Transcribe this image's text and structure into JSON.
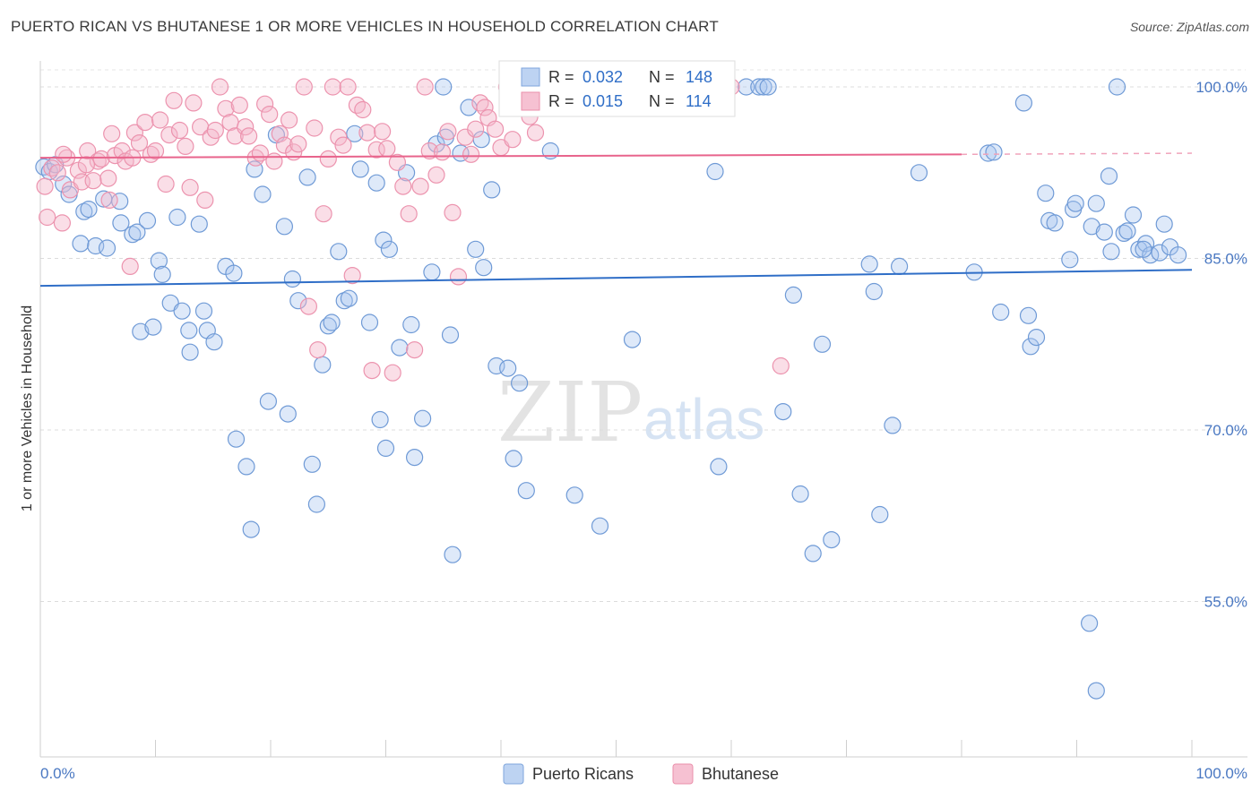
{
  "header": {
    "title": "PUERTO RICAN VS BHUTANESE 1 OR MORE VEHICLES IN HOUSEHOLD CORRELATION CHART",
    "source": "Source: ZipAtlas.com"
  },
  "watermark": {
    "zip": "ZIP",
    "atlas": "atlas"
  },
  "legend": {
    "r_label": "R =",
    "n_label": "N =",
    "rows": [
      {
        "name": "Puerto Ricans",
        "r": "0.032",
        "n": "148"
      },
      {
        "name": "Bhutanese",
        "r": "0.015",
        "n": "114"
      }
    ]
  },
  "chart_data": {
    "type": "scatter",
    "title": "PUERTO RICAN VS BHUTANESE 1 OR MORE VEHICLES IN HOUSEHOLD CORRELATION CHART",
    "xlabel": "",
    "ylabel": "1 or more Vehicles in Household",
    "xlim": [
      0,
      100
    ],
    "ylim": [
      40,
      101.5
    ],
    "x_tick_labels": [
      "0.0%",
      "100.0%"
    ],
    "y_ticks": [
      {
        "value": 100,
        "label": "100.0%"
      },
      {
        "value": 85,
        "label": "85.0%"
      },
      {
        "value": 70,
        "label": "70.0%"
      },
      {
        "value": 55,
        "label": "55.0%"
      }
    ],
    "grid": true,
    "colors": {
      "puerto_ricans": "#a7c4ee",
      "puerto_ricans_line": "#2f6ec7",
      "bhutanese": "#f4b6ca",
      "bhutanese_line": "#e8648c",
      "tick": "#4a78c2"
    },
    "series": [
      {
        "name": "Puerto Ricans",
        "r": 0.032,
        "n": 148,
        "trend": {
          "x": [
            0,
            100
          ],
          "y": [
            82.6,
            84.0
          ]
        },
        "points": [
          [
            0.3,
            93.0
          ],
          [
            0.8,
            92.6
          ],
          [
            1.3,
            93.2
          ],
          [
            2.0,
            91.5
          ],
          [
            2.5,
            90.6
          ],
          [
            3.5,
            86.3
          ],
          [
            3.8,
            89.1
          ],
          [
            4.2,
            89.3
          ],
          [
            4.8,
            86.1
          ],
          [
            5.8,
            85.9
          ],
          [
            5.5,
            90.2
          ],
          [
            6.9,
            90.0
          ],
          [
            7.0,
            88.1
          ],
          [
            8.0,
            87.1
          ],
          [
            8.4,
            87.3
          ],
          [
            9.3,
            88.3
          ],
          [
            8.7,
            78.6
          ],
          [
            9.8,
            79.0
          ],
          [
            10.3,
            84.8
          ],
          [
            10.6,
            83.6
          ],
          [
            11.3,
            81.1
          ],
          [
            11.9,
            88.6
          ],
          [
            12.3,
            80.4
          ],
          [
            12.9,
            78.7
          ],
          [
            13.0,
            76.8
          ],
          [
            13.8,
            88.0
          ],
          [
            14.2,
            80.4
          ],
          [
            14.5,
            78.7
          ],
          [
            15.1,
            77.7
          ],
          [
            16.1,
            84.3
          ],
          [
            16.8,
            83.7
          ],
          [
            17.0,
            69.2
          ],
          [
            17.9,
            66.8
          ],
          [
            18.3,
            61.3
          ],
          [
            18.6,
            92.8
          ],
          [
            19.3,
            90.6
          ],
          [
            19.8,
            72.5
          ],
          [
            20.5,
            95.8
          ],
          [
            21.2,
            87.8
          ],
          [
            21.5,
            71.4
          ],
          [
            21.9,
            83.2
          ],
          [
            22.4,
            81.3
          ],
          [
            23.2,
            92.1
          ],
          [
            23.6,
            67.0
          ],
          [
            24.0,
            63.5
          ],
          [
            24.5,
            75.7
          ],
          [
            25.0,
            79.1
          ],
          [
            25.3,
            79.4
          ],
          [
            25.9,
            85.6
          ],
          [
            26.4,
            81.3
          ],
          [
            26.8,
            81.5
          ],
          [
            27.3,
            95.9
          ],
          [
            27.8,
            92.8
          ],
          [
            28.6,
            79.4
          ],
          [
            29.2,
            91.6
          ],
          [
            29.5,
            70.9
          ],
          [
            29.8,
            86.6
          ],
          [
            30.0,
            68.4
          ],
          [
            30.3,
            85.8
          ],
          [
            31.2,
            77.2
          ],
          [
            31.8,
            92.5
          ],
          [
            32.2,
            79.2
          ],
          [
            32.5,
            67.6
          ],
          [
            33.2,
            71.0
          ],
          [
            34.0,
            83.8
          ],
          [
            34.4,
            95.0
          ],
          [
            35.0,
            100.0
          ],
          [
            35.2,
            95.6
          ],
          [
            35.6,
            78.3
          ],
          [
            35.8,
            59.1
          ],
          [
            36.5,
            94.2
          ],
          [
            37.2,
            98.2
          ],
          [
            37.8,
            85.8
          ],
          [
            38.3,
            95.4
          ],
          [
            38.5,
            84.2
          ],
          [
            39.2,
            91.0
          ],
          [
            39.6,
            75.6
          ],
          [
            40.6,
            75.4
          ],
          [
            41.1,
            67.5
          ],
          [
            41.6,
            74.1
          ],
          [
            42.2,
            64.7
          ],
          [
            44.3,
            94.4
          ],
          [
            46.4,
            64.3
          ],
          [
            48.6,
            61.6
          ],
          [
            49.5,
            100.0
          ],
          [
            51.4,
            77.9
          ],
          [
            58.6,
            92.6
          ],
          [
            58.9,
            66.8
          ],
          [
            61.3,
            100.0
          ],
          [
            62.4,
            100.0
          ],
          [
            62.8,
            100.0
          ],
          [
            63.2,
            100.0
          ],
          [
            64.5,
            71.6
          ],
          [
            65.4,
            81.8
          ],
          [
            66.0,
            64.4
          ],
          [
            67.1,
            59.2
          ],
          [
            67.9,
            77.5
          ],
          [
            68.7,
            60.4
          ],
          [
            72.0,
            84.5
          ],
          [
            72.4,
            82.1
          ],
          [
            72.9,
            62.6
          ],
          [
            74.0,
            70.4
          ],
          [
            74.6,
            84.3
          ],
          [
            76.3,
            92.5
          ],
          [
            81.1,
            83.8
          ],
          [
            82.3,
            94.2
          ],
          [
            82.8,
            94.3
          ],
          [
            83.4,
            80.3
          ],
          [
            85.4,
            98.6
          ],
          [
            85.8,
            80.0
          ],
          [
            86.0,
            77.3
          ],
          [
            86.5,
            78.1
          ],
          [
            87.3,
            90.7
          ],
          [
            87.6,
            88.3
          ],
          [
            88.1,
            88.1
          ],
          [
            89.4,
            84.9
          ],
          [
            89.7,
            89.3
          ],
          [
            89.9,
            89.8
          ],
          [
            91.3,
            87.8
          ],
          [
            91.7,
            89.8
          ],
          [
            92.4,
            87.3
          ],
          [
            92.8,
            92.2
          ],
          [
            93.0,
            85.6
          ],
          [
            94.1,
            87.2
          ],
          [
            94.4,
            87.4
          ],
          [
            94.9,
            88.8
          ],
          [
            95.4,
            85.8
          ],
          [
            96.0,
            86.3
          ],
          [
            96.4,
            85.3
          ],
          [
            97.2,
            85.5
          ],
          [
            97.6,
            88.0
          ],
          [
            98.1,
            86.0
          ],
          [
            98.8,
            85.3
          ],
          [
            91.1,
            53.1
          ],
          [
            91.7,
            47.2
          ],
          [
            93.5,
            100.0
          ],
          [
            95.8,
            85.8
          ]
        ]
      },
      {
        "name": "Bhutanese",
        "r": 0.015,
        "n": 114,
        "trend": {
          "x": [
            0,
            80
          ],
          "y": [
            93.8,
            94.1
          ]
        },
        "trend_dashed": {
          "x": [
            80,
            100
          ],
          "y": [
            94.1,
            94.2
          ]
        },
        "points": [
          [
            0.4,
            91.3
          ],
          [
            0.6,
            88.6
          ],
          [
            1.0,
            92.9
          ],
          [
            1.5,
            92.5
          ],
          [
            1.9,
            88.1
          ],
          [
            2.3,
            93.8
          ],
          [
            2.6,
            91.0
          ],
          [
            3.3,
            92.7
          ],
          [
            3.6,
            91.7
          ],
          [
            4.1,
            94.4
          ],
          [
            4.6,
            91.8
          ],
          [
            5.0,
            93.5
          ],
          [
            5.3,
            93.7
          ],
          [
            5.9,
            92.0
          ],
          [
            6.2,
            95.9
          ],
          [
            6.5,
            94.0
          ],
          [
            7.1,
            94.4
          ],
          [
            7.4,
            93.5
          ],
          [
            7.8,
            84.3
          ],
          [
            8.2,
            96.0
          ],
          [
            8.6,
            95.1
          ],
          [
            9.1,
            96.9
          ],
          [
            9.6,
            94.1
          ],
          [
            10.0,
            94.4
          ],
          [
            10.4,
            97.1
          ],
          [
            10.9,
            91.5
          ],
          [
            11.2,
            95.8
          ],
          [
            11.6,
            98.8
          ],
          [
            12.1,
            96.2
          ],
          [
            12.6,
            94.8
          ],
          [
            13.0,
            91.2
          ],
          [
            13.3,
            98.6
          ],
          [
            13.9,
            96.5
          ],
          [
            14.3,
            90.1
          ],
          [
            14.8,
            95.6
          ],
          [
            15.2,
            96.2
          ],
          [
            15.6,
            100.0
          ],
          [
            16.1,
            98.1
          ],
          [
            16.5,
            96.9
          ],
          [
            16.9,
            95.7
          ],
          [
            17.3,
            98.4
          ],
          [
            17.8,
            96.5
          ],
          [
            18.1,
            95.7
          ],
          [
            18.7,
            93.8
          ],
          [
            19.1,
            94.2
          ],
          [
            19.5,
            98.5
          ],
          [
            19.9,
            97.6
          ],
          [
            20.3,
            93.5
          ],
          [
            20.8,
            95.9
          ],
          [
            21.2,
            94.9
          ],
          [
            21.6,
            97.1
          ],
          [
            22.0,
            94.3
          ],
          [
            22.4,
            95.0
          ],
          [
            22.9,
            100.0
          ],
          [
            23.3,
            80.8
          ],
          [
            23.8,
            96.4
          ],
          [
            24.1,
            77.0
          ],
          [
            24.6,
            88.9
          ],
          [
            25.0,
            93.7
          ],
          [
            25.4,
            100.0
          ],
          [
            25.9,
            95.6
          ],
          [
            26.3,
            94.9
          ],
          [
            26.7,
            100.0
          ],
          [
            27.1,
            83.5
          ],
          [
            27.5,
            98.4
          ],
          [
            28.0,
            98.0
          ],
          [
            28.4,
            96.0
          ],
          [
            28.8,
            75.2
          ],
          [
            29.2,
            94.5
          ],
          [
            29.7,
            96.1
          ],
          [
            30.1,
            94.6
          ],
          [
            30.6,
            75.0
          ],
          [
            31.0,
            93.4
          ],
          [
            31.5,
            91.3
          ],
          [
            32.0,
            88.9
          ],
          [
            32.5,
            77.0
          ],
          [
            33.0,
            91.3
          ],
          [
            33.4,
            100.0
          ],
          [
            33.8,
            94.4
          ],
          [
            34.4,
            92.3
          ],
          [
            34.9,
            94.3
          ],
          [
            35.4,
            96.1
          ],
          [
            35.8,
            89.0
          ],
          [
            36.3,
            83.4
          ],
          [
            36.9,
            95.6
          ],
          [
            37.4,
            94.1
          ],
          [
            37.8,
            96.3
          ],
          [
            38.2,
            98.6
          ],
          [
            38.6,
            98.2
          ],
          [
            38.9,
            97.3
          ],
          [
            39.5,
            96.3
          ],
          [
            40.0,
            94.7
          ],
          [
            40.5,
            100.0
          ],
          [
            41.0,
            95.4
          ],
          [
            41.5,
            99.1
          ],
          [
            42.0,
            100.0
          ],
          [
            42.5,
            97.4
          ],
          [
            43.0,
            96.0
          ],
          [
            43.6,
            100.0
          ],
          [
            44.3,
            100.0
          ],
          [
            45.0,
            99.0
          ],
          [
            46.5,
            100.0
          ],
          [
            47.8,
            99.2
          ],
          [
            49.5,
            100.0
          ],
          [
            51.0,
            98.3
          ],
          [
            52.2,
            100.0
          ],
          [
            53.6,
            100.0
          ],
          [
            55.2,
            100.0
          ],
          [
            57.0,
            100.0
          ],
          [
            60.0,
            100.0
          ],
          [
            64.3,
            75.6
          ],
          [
            2.0,
            94.1
          ],
          [
            4.0,
            93.2
          ],
          [
            6.0,
            90.1
          ],
          [
            8.0,
            93.8
          ]
        ]
      }
    ]
  }
}
